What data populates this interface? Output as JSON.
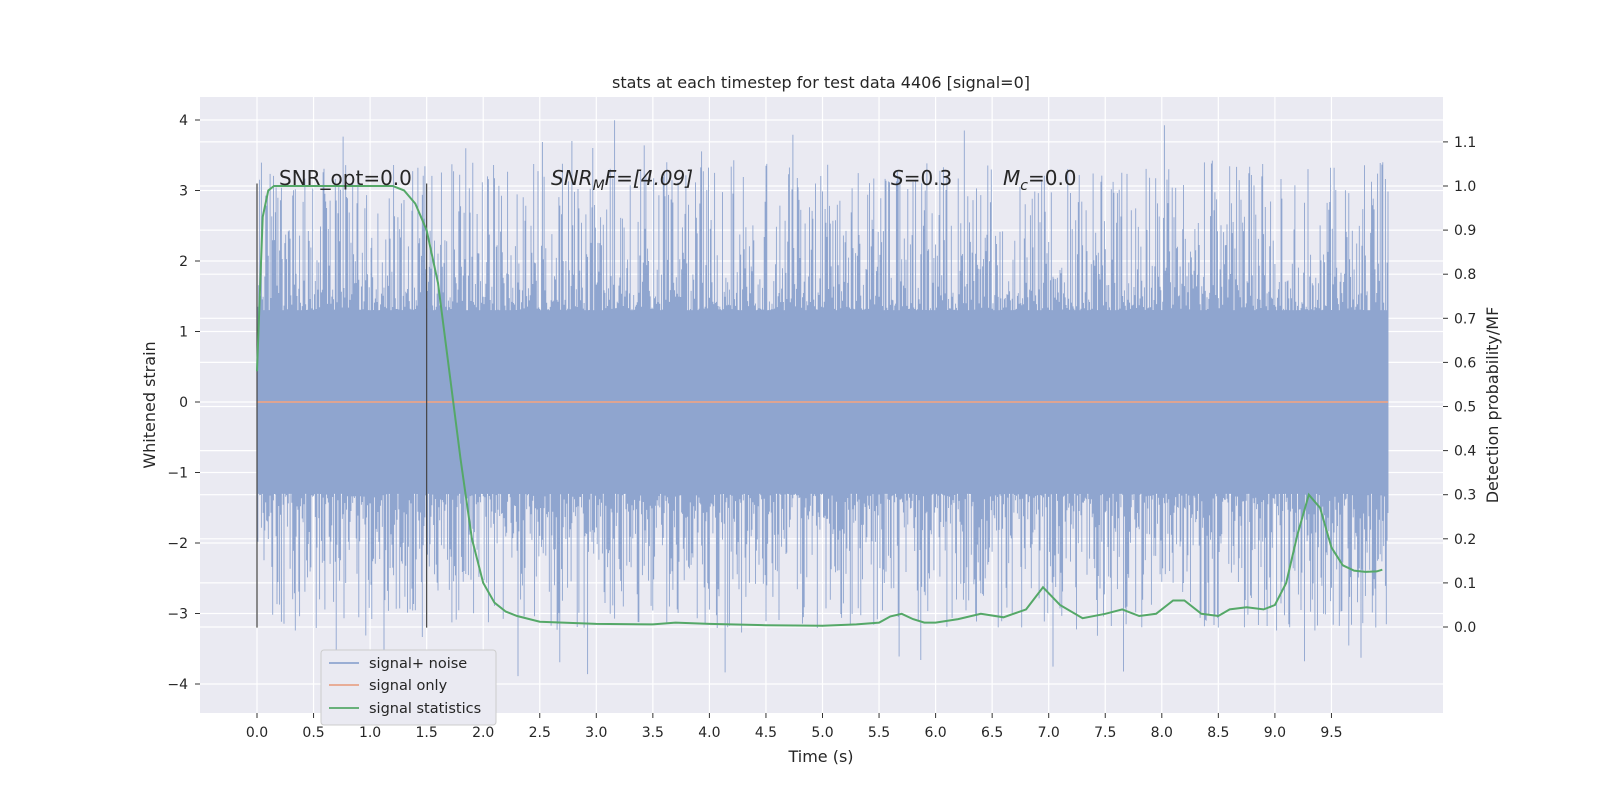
{
  "chart_data": {
    "type": "line",
    "title": "stats at each timestep for test data 4406 [signal=0]",
    "xlabel": "Time (s)",
    "ylabel_left": "Whitened strain",
    "ylabel_right": "Detection probability/MF",
    "xlim": [
      -0.5,
      10.5
    ],
    "ylim_left": [
      -4.4,
      4.4
    ],
    "ylim_right": [
      -0.2,
      1.2
    ],
    "x_ticks": [
      "0.0",
      "0.5",
      "1.0",
      "1.5",
      "2.0",
      "2.5",
      "3.0",
      "3.5",
      "4.0",
      "4.5",
      "5.0",
      "5.5",
      "6.0",
      "6.5",
      "7.0",
      "7.5",
      "8.0",
      "8.5",
      "9.0",
      "9.5"
    ],
    "y_left_ticks": [
      "−4",
      "−3",
      "−2",
      "−1",
      "0",
      "1",
      "2",
      "3",
      "4"
    ],
    "y_right_ticks": [
      "0.0",
      "0.1",
      "0.2",
      "0.3",
      "0.4",
      "0.5",
      "0.6",
      "0.7",
      "0.8",
      "0.9",
      "1.0",
      "1.1"
    ],
    "grid": true,
    "legend_position": "lower-left",
    "annotations": {
      "snr_opt": "SNR_opt=0.0",
      "snr_mf_prefix": "SNR",
      "snr_mf_sub": "M",
      "snr_mf_suffix": "F=[4.09]",
      "s_var": "S",
      "s_val": "=0.3",
      "mc_var": "M",
      "mc_sub": "c",
      "mc_val": "=0.0"
    },
    "vertical_markers": [
      0.0,
      1.5
    ],
    "series": [
      {
        "name": "signal+ noise",
        "axis": "left",
        "color": "#8fa5cf",
        "time_range": [
          0.0,
          10.0
        ],
        "core_band": [
          -1.3,
          1.3
        ],
        "approx_range": [
          -4.0,
          4.0
        ]
      },
      {
        "name": "signal only",
        "axis": "left",
        "color": "#e8a48a",
        "x": [
          0.0,
          10.0
        ],
        "y": [
          0.0,
          0.0
        ]
      },
      {
        "name": "signal statistics",
        "axis": "right",
        "color": "#55a868",
        "x": [
          0.0,
          0.05,
          0.1,
          0.15,
          0.2,
          0.3,
          0.5,
          0.8,
          1.0,
          1.2,
          1.3,
          1.4,
          1.5,
          1.6,
          1.7,
          1.8,
          1.9,
          2.0,
          2.1,
          2.2,
          2.3,
          2.5,
          3.0,
          3.5,
          3.7,
          4.0,
          4.5,
          5.0,
          5.3,
          5.5,
          5.6,
          5.7,
          5.8,
          5.9,
          6.0,
          6.2,
          6.4,
          6.6,
          6.8,
          6.95,
          7.1,
          7.3,
          7.5,
          7.65,
          7.8,
          7.95,
          8.1,
          8.2,
          8.35,
          8.5,
          8.6,
          8.75,
          8.9,
          9.0,
          9.1,
          9.2,
          9.3,
          9.4,
          9.5,
          9.6,
          9.7,
          9.8,
          9.9,
          9.95
        ],
        "y": [
          0.58,
          0.93,
          0.99,
          1.0,
          1.0,
          1.0,
          1.0,
          1.0,
          1.0,
          1.0,
          0.99,
          0.96,
          0.9,
          0.78,
          0.58,
          0.38,
          0.2,
          0.1,
          0.055,
          0.035,
          0.025,
          0.012,
          0.007,
          0.006,
          0.01,
          0.007,
          0.004,
          0.003,
          0.006,
          0.01,
          0.024,
          0.03,
          0.018,
          0.01,
          0.01,
          0.018,
          0.03,
          0.022,
          0.04,
          0.09,
          0.05,
          0.02,
          0.03,
          0.04,
          0.025,
          0.03,
          0.06,
          0.06,
          0.03,
          0.025,
          0.04,
          0.045,
          0.04,
          0.05,
          0.1,
          0.21,
          0.3,
          0.27,
          0.18,
          0.14,
          0.128,
          0.125,
          0.126,
          0.13
        ]
      }
    ]
  }
}
